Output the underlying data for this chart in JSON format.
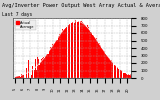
{
  "title_line1": "Avg/Inverter Power Output West Array Actual & Average Power Output",
  "title_line2": "Last 7 days",
  "title_fontsize": 3.8,
  "ylim": [
    0,
    800
  ],
  "yticks": [
    0,
    100,
    200,
    300,
    400,
    500,
    600,
    700,
    800
  ],
  "ytick_labels": [
    "0",
    "100",
    "200",
    "300",
    "400",
    "500",
    "600",
    "700",
    "800"
  ],
  "ytick_fontsize": 2.8,
  "xtick_fontsize": 2.5,
  "background_color": "#d0d0d0",
  "plot_bg_color": "#ffffff",
  "grid_color": "#aaaaaa",
  "fill_color": "#ff0000",
  "avg_line_color": "#ffffff",
  "xlim_min": 5.0,
  "xlim_max": 20.5,
  "mu": 13.2,
  "sigma": 3.0,
  "peak": 760,
  "num_bars": 155,
  "spike_start": 6.3,
  "spike_end": 8.2
}
